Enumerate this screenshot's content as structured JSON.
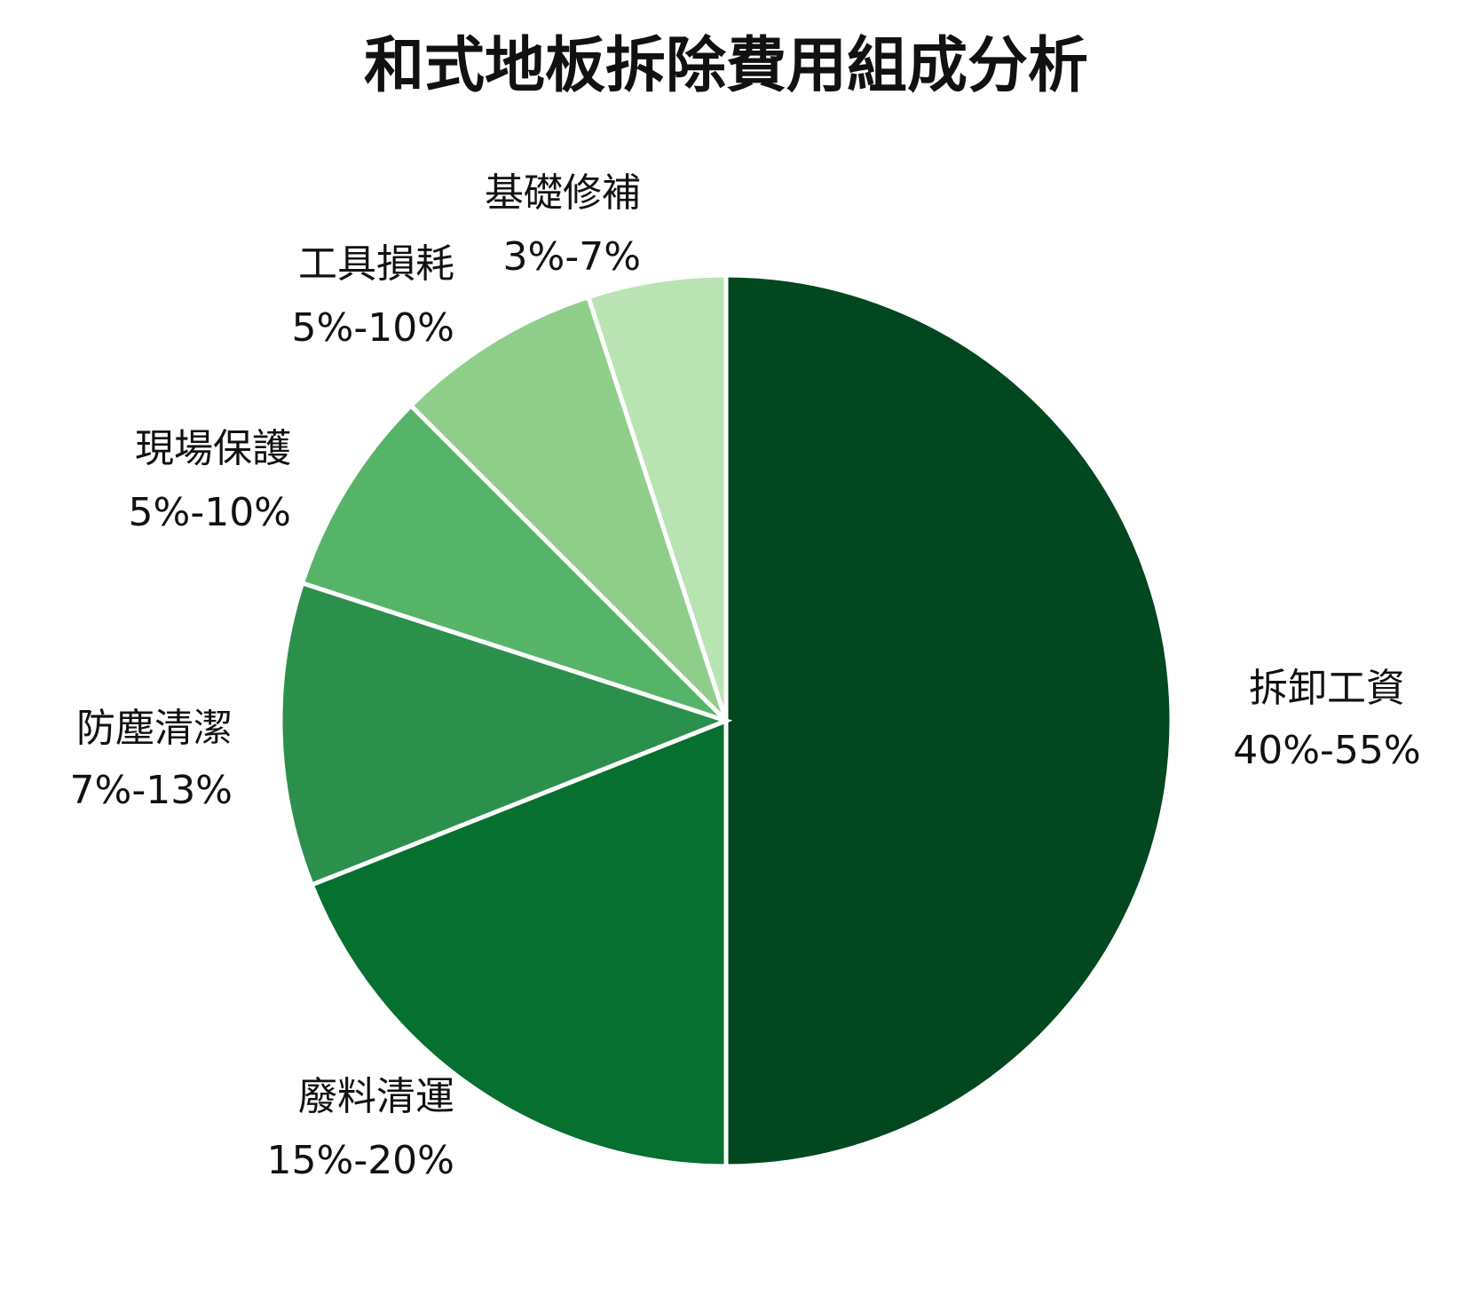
{
  "chart_data": {
    "type": "pie",
    "title": "和式地板拆除費用組成分析",
    "start_angle": "12 o'clock",
    "direction": "clockwise",
    "slices": [
      {
        "label": "拆卸工資",
        "range_text": "40%-55%",
        "value": 50,
        "color": "#01471f"
      },
      {
        "label": "廢料清運",
        "range_text": "15%-20%",
        "value": 19,
        "color": "#057030"
      },
      {
        "label": "防塵清潔",
        "range_text": "7%-13%",
        "value": 11,
        "color": "#2c904d"
      },
      {
        "label": "現場保護",
        "range_text": "5%-10%",
        "value": 7.5,
        "color": "#56b469"
      },
      {
        "label": "工具損耗",
        "range_text": "5%-10%",
        "value": 7.5,
        "color": "#8fce8a"
      },
      {
        "label": "基礎修補",
        "range_text": "3%-7%",
        "value": 5,
        "color": "#bae3b4"
      }
    ]
  }
}
